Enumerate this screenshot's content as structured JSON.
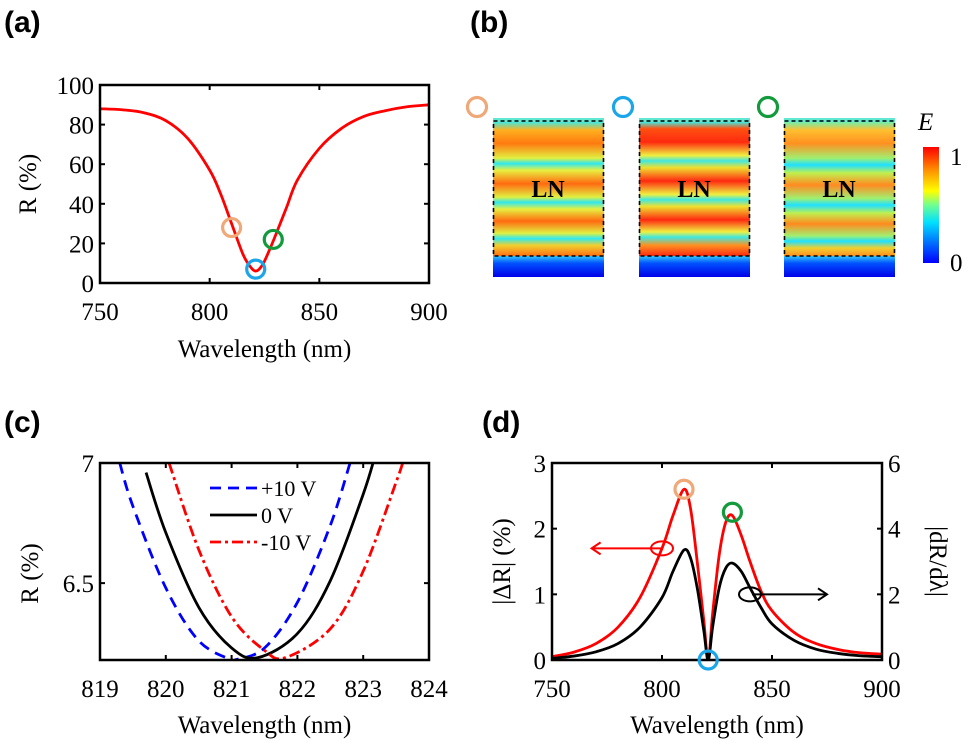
{
  "panel_labels": {
    "a": "(a)",
    "b": "(b)",
    "c": "(c)",
    "d": "(d)"
  },
  "marker_colors": {
    "orange": "#f0a878",
    "blue": "#1aa6e8",
    "green": "#139a3c"
  },
  "chart_data": [
    {
      "panel": "a",
      "type": "line",
      "xlabel": "Wavelength (nm)",
      "ylabel": "R (%)",
      "xlim": [
        750,
        900
      ],
      "ylim": [
        0,
        100
      ],
      "xticks": [
        750,
        800,
        850,
        900
      ],
      "yticks": [
        0,
        20,
        40,
        60,
        80,
        100
      ],
      "grid": false,
      "series": [
        {
          "color": "#ff0000",
          "style": "solid",
          "x": [
            750,
            760,
            770,
            780,
            790,
            800,
            805,
            810,
            815,
            818,
            821,
            824,
            827,
            830,
            835,
            840,
            850,
            860,
            870,
            880,
            890,
            900
          ],
          "y": [
            88,
            87.5,
            86,
            82,
            73,
            57,
            45,
            30,
            15,
            9,
            6,
            9,
            16,
            24,
            38,
            52,
            68,
            78,
            84,
            87,
            89,
            90
          ]
        }
      ],
      "markers": [
        {
          "x": 810,
          "y": 28,
          "color": "orange"
        },
        {
          "x": 821,
          "y": 7,
          "color": "blue"
        },
        {
          "x": 829,
          "y": 22,
          "color": "green"
        }
      ]
    },
    {
      "panel": "b",
      "type": "heatmap",
      "maps": [
        {
          "label": "LN",
          "marker": "orange"
        },
        {
          "label": "LN",
          "marker": "blue"
        },
        {
          "label": "LN",
          "marker": "green"
        }
      ],
      "colorbar": {
        "label": "E",
        "min_label": "0",
        "max_label": "1",
        "colormap": "jet"
      }
    },
    {
      "panel": "c",
      "type": "line",
      "xlabel": "Wavelength (nm)",
      "ylabel": "R (%)",
      "xlim": [
        819,
        824
      ],
      "ylim": [
        6.18,
        7
      ],
      "xticks": [
        819,
        820,
        821,
        822,
        823,
        824
      ],
      "yticks": [
        6.5,
        7
      ],
      "grid": false,
      "legend": "top-center",
      "series": [
        {
          "name": "+10 V",
          "color": "#0000ff",
          "style": "dashed",
          "x": [
            819.3,
            819.5,
            820,
            820.5,
            821,
            821.05,
            821.5,
            822,
            822.5,
            822.8
          ],
          "y": [
            7.0,
            6.82,
            6.48,
            6.26,
            6.18,
            6.18,
            6.23,
            6.42,
            6.74,
            7.0
          ]
        },
        {
          "name": "0 V",
          "color": "#000000",
          "style": "solid",
          "x": [
            819.7,
            820,
            820.5,
            821,
            821.4,
            822,
            822.5,
            823,
            823.2
          ],
          "y": [
            6.96,
            6.71,
            6.4,
            6.23,
            6.19,
            6.29,
            6.51,
            6.87,
            7.05
          ]
        },
        {
          "name": "-10 V",
          "color": "#ff0000",
          "style": "dash-dot",
          "x": [
            820.05,
            820.5,
            821,
            821.5,
            821.82,
            822.5,
            823,
            823.5,
            823.6
          ],
          "y": [
            7.0,
            6.64,
            6.36,
            6.22,
            6.19,
            6.31,
            6.55,
            6.92,
            7.0
          ]
        }
      ]
    },
    {
      "panel": "d",
      "type": "line",
      "xlabel": "Wavelength (nm)",
      "ylabel": "|ΔR| (%)",
      "ylabel_right": "|dR/dλ|",
      "xlim": [
        750,
        900
      ],
      "ylim": [
        0,
        3
      ],
      "ylim_right": [
        0,
        6
      ],
      "xticks": [
        750,
        800,
        850,
        900
      ],
      "yticks": [
        0,
        1,
        2,
        3
      ],
      "yticks_right": [
        0,
        2,
        4,
        6
      ],
      "grid": false,
      "series": [
        {
          "axis": "left",
          "color": "#ff0000",
          "style": "solid",
          "x": [
            750,
            760,
            770,
            780,
            790,
            800,
            805,
            810,
            813,
            816,
            819,
            821,
            823,
            826,
            829,
            832,
            836,
            840,
            845,
            850,
            860,
            870,
            880,
            890,
            900
          ],
          "y": [
            0.05,
            0.12,
            0.25,
            0.5,
            0.95,
            1.7,
            2.2,
            2.6,
            2.3,
            1.5,
            0.6,
            0.0,
            0.7,
            1.6,
            2.1,
            2.2,
            1.9,
            1.5,
            1.05,
            0.75,
            0.42,
            0.25,
            0.16,
            0.11,
            0.09
          ]
        },
        {
          "axis": "right",
          "color": "#000000",
          "style": "solid",
          "x": [
            750,
            760,
            770,
            780,
            790,
            800,
            805,
            810,
            813,
            816,
            819,
            821,
            823,
            826,
            829,
            832,
            836,
            840,
            845,
            850,
            860,
            870,
            880,
            890,
            900
          ],
          "y": [
            0.05,
            0.12,
            0.25,
            0.5,
            1.0,
            1.9,
            2.7,
            3.35,
            3.1,
            2.2,
            0.9,
            0.0,
            1.0,
            2.2,
            2.8,
            2.95,
            2.7,
            2.2,
            1.6,
            1.1,
            0.6,
            0.33,
            0.2,
            0.13,
            0.1
          ]
        }
      ],
      "markers": [
        {
          "x": 810,
          "y": 2.6,
          "color": "orange"
        },
        {
          "x": 832,
          "y": 2.25,
          "color": "green"
        },
        {
          "x": 821,
          "y": 0,
          "color": "blue"
        }
      ],
      "annotations": [
        {
          "series": "left",
          "direction": "left",
          "x_from": 800,
          "x_to": 768,
          "y": 1.7,
          "color": "#ff0000"
        },
        {
          "series": "right",
          "direction": "right",
          "x_from": 840,
          "x_to": 875,
          "y": 1.0,
          "color": "#000000"
        }
      ]
    }
  ]
}
